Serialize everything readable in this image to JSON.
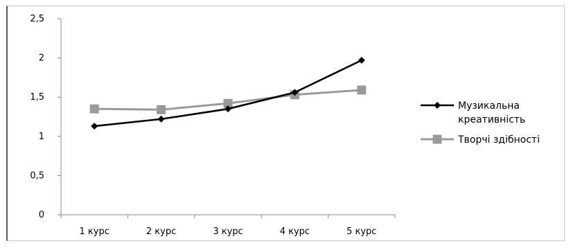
{
  "chart_data": {
    "type": "line",
    "categories": [
      "1 курс",
      "2 курс",
      "3 курс",
      "4 курс",
      "5 курс"
    ],
    "ylim": [
      0,
      2.5
    ],
    "yticks": [
      "0",
      "0,5",
      "1",
      "1,5",
      "2",
      "2,5"
    ],
    "ytick_values": [
      0,
      0.5,
      1,
      1.5,
      2,
      2.5
    ],
    "grid": false,
    "legend_position": "right",
    "series": [
      {
        "name_lines": [
          "Музикальна",
          "креативність"
        ],
        "values": [
          1.13,
          1.22,
          1.35,
          1.56,
          1.97
        ],
        "color": "#000000",
        "marker": "diamond"
      },
      {
        "name_lines": [
          "Творчі здібності"
        ],
        "values": [
          1.35,
          1.34,
          1.42,
          1.53,
          1.59
        ],
        "color": "#9a9a9a",
        "marker": "square"
      }
    ]
  }
}
